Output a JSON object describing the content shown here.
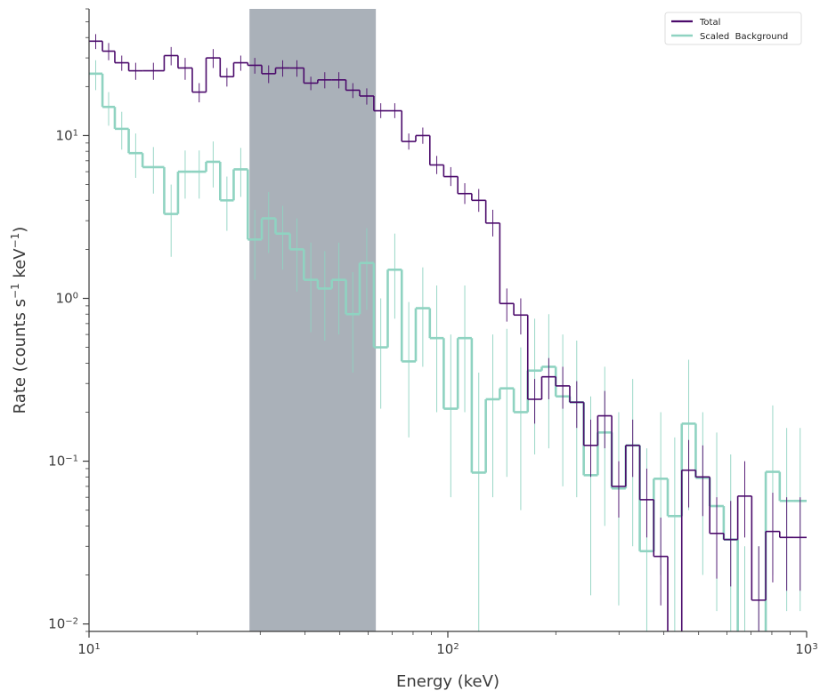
{
  "chart_data": {
    "type": "line",
    "title": "",
    "xlabel": "Energy (keV)",
    "ylabel_parts": [
      "Rate (counts s",
      "−1",
      " keV",
      "−1",
      ")"
    ],
    "xscale": "log",
    "yscale": "log",
    "xlim": [
      10,
      1000
    ],
    "ylim": [
      0.009,
      60
    ],
    "x_ticks": [
      {
        "value": 10,
        "base": "10",
        "exp": "1"
      },
      {
        "value": 100,
        "base": "10",
        "exp": "2"
      },
      {
        "value": 1000,
        "base": "10",
        "exp": "3"
      }
    ],
    "y_ticks": [
      {
        "value": 0.01,
        "base": "10",
        "exp": "−2"
      },
      {
        "value": 0.1,
        "base": "10",
        "exp": "−1"
      },
      {
        "value": 1,
        "base": "10",
        "exp": "0"
      },
      {
        "value": 10,
        "base": "10",
        "exp": "1"
      }
    ],
    "grid": false,
    "legend_position": "top-right",
    "shaded_region": {
      "x_start": 28,
      "x_end": 63,
      "color": "#7d8794"
    },
    "series": [
      {
        "name": "Total",
        "color": "#4b0a6b",
        "edges": [
          10,
          10.9,
          11.8,
          12.9,
          14.1,
          16.2,
          17.7,
          19.4,
          21.2,
          23.2,
          25.3,
          27.7,
          30.3,
          33.1,
          36.3,
          39.7,
          43.4,
          47.5,
          52.0,
          56.8,
          62.2,
          68.0,
          74.4,
          81.4,
          89.1,
          97.4,
          106.6,
          116.6,
          127.6,
          139.6,
          152.7,
          167.0,
          182.7,
          199.9,
          218.7,
          239.2,
          261.7,
          286.3,
          313.2,
          342.7,
          374.9,
          410.1,
          448.7,
          490.8,
          537.0,
          587.4,
          642.7,
          703.1,
          769.2,
          841.5,
          920.6,
          1000
        ],
        "values": [
          38,
          33,
          28,
          25,
          25,
          31,
          26,
          18.5,
          30,
          23,
          28,
          27,
          24,
          26,
          26,
          21,
          22,
          22,
          19,
          17.5,
          14.2,
          14.2,
          9.2,
          10,
          6.6,
          5.6,
          4.4,
          4.0,
          2.9,
          0.93,
          0.79,
          0.24,
          0.33,
          0.29,
          0.23,
          0.125,
          0.19,
          0.07,
          0.125,
          0.058,
          0.026,
          0.0045,
          0.088,
          0.08,
          0.036,
          0.033,
          0.061,
          0.014,
          0.037,
          0.034,
          0.034
        ],
        "err_low": [
          34,
          29,
          25,
          22,
          22,
          27,
          22,
          16,
          26,
          20,
          25,
          24,
          21,
          23,
          23,
          19,
          19.5,
          19.5,
          17,
          15.5,
          12.8,
          12.8,
          8.2,
          8.9,
          5.8,
          4.9,
          3.8,
          3.4,
          2.4,
          0.72,
          0.6,
          0.17,
          0.24,
          0.21,
          0.16,
          0.08,
          0.12,
          0.045,
          0.08,
          0.034,
          0.013,
          0.0018,
          0.052,
          0.046,
          0.019,
          0.017,
          0.034,
          0.006,
          0.018,
          0.016,
          0.016
        ],
        "err_high": [
          42,
          37,
          31,
          28,
          28,
          35,
          30,
          21,
          34,
          26,
          31,
          30,
          27,
          29,
          29,
          23,
          24.5,
          24.5,
          21,
          19.5,
          15.8,
          15.8,
          10.3,
          11.2,
          7.5,
          6.4,
          5.1,
          4.7,
          3.5,
          1.15,
          1.0,
          0.32,
          0.43,
          0.38,
          0.31,
          0.18,
          0.27,
          0.1,
          0.18,
          0.09,
          0.045,
          0.009,
          0.135,
          0.125,
          0.06,
          0.057,
          0.1,
          0.03,
          0.064,
          0.06,
          0.06
        ]
      },
      {
        "name": "Scaled  Background",
        "color": "#8fd3c1",
        "edges": [
          10,
          10.9,
          11.8,
          12.9,
          14.1,
          16.2,
          17.7,
          19.4,
          21.2,
          23.2,
          25.3,
          27.7,
          30.3,
          33.1,
          36.3,
          39.7,
          43.4,
          47.5,
          52.0,
          56.8,
          62.2,
          68.0,
          74.4,
          81.4,
          89.1,
          97.4,
          106.6,
          116.6,
          127.6,
          139.6,
          152.7,
          167.0,
          182.7,
          199.9,
          218.7,
          239.2,
          261.7,
          286.3,
          313.2,
          342.7,
          374.9,
          410.1,
          448.7,
          490.8,
          537.0,
          587.4,
          642.7,
          703.1,
          769.2,
          841.5,
          920.6,
          1000
        ],
        "values": [
          24,
          15,
          11,
          7.8,
          6.4,
          3.3,
          6.0,
          6.0,
          6.9,
          4.0,
          6.2,
          2.3,
          3.1,
          2.5,
          2.0,
          1.3,
          1.15,
          1.3,
          0.8,
          1.65,
          0.5,
          1.5,
          0.41,
          0.87,
          0.57,
          0.21,
          0.57,
          0.085,
          0.24,
          0.28,
          0.2,
          0.36,
          0.38,
          0.25,
          0.23,
          0.082,
          0.15,
          0.068,
          0.125,
          0.028,
          0.078,
          0.046,
          0.17,
          0.079,
          0.053,
          0.033,
          0.0045,
          0.0045,
          0.086,
          0.057,
          0.057
        ],
        "err_low": [
          19,
          11.5,
          8.2,
          5.5,
          4.4,
          1.8,
          4.1,
          4.1,
          4.8,
          2.6,
          4.2,
          1.3,
          1.9,
          1.5,
          1.1,
          0.62,
          0.55,
          0.6,
          0.35,
          0.85,
          0.21,
          0.75,
          0.14,
          0.38,
          0.2,
          0.06,
          0.2,
          0.009,
          0.06,
          0.08,
          0.05,
          0.11,
          0.12,
          0.07,
          0.06,
          0.015,
          0.04,
          0.013,
          0.03,
          0.004,
          0.02,
          0.008,
          0.05,
          0.02,
          0.012,
          0.006,
          0.001,
          0.001,
          0.02,
          0.012,
          0.012
        ],
        "err_high": [
          29,
          18.5,
          14,
          10.3,
          8.5,
          5.0,
          8.1,
          8.1,
          9.2,
          5.6,
          8.4,
          3.5,
          4.5,
          3.7,
          3.1,
          2.2,
          1.95,
          2.2,
          1.45,
          2.7,
          1.0,
          2.5,
          0.95,
          1.55,
          1.2,
          0.6,
          1.2,
          0.35,
          0.6,
          0.65,
          0.5,
          0.75,
          0.8,
          0.6,
          0.55,
          0.25,
          0.38,
          0.2,
          0.32,
          0.12,
          0.2,
          0.14,
          0.42,
          0.2,
          0.15,
          0.11,
          0.03,
          0.03,
          0.22,
          0.16,
          0.16
        ]
      }
    ]
  }
}
